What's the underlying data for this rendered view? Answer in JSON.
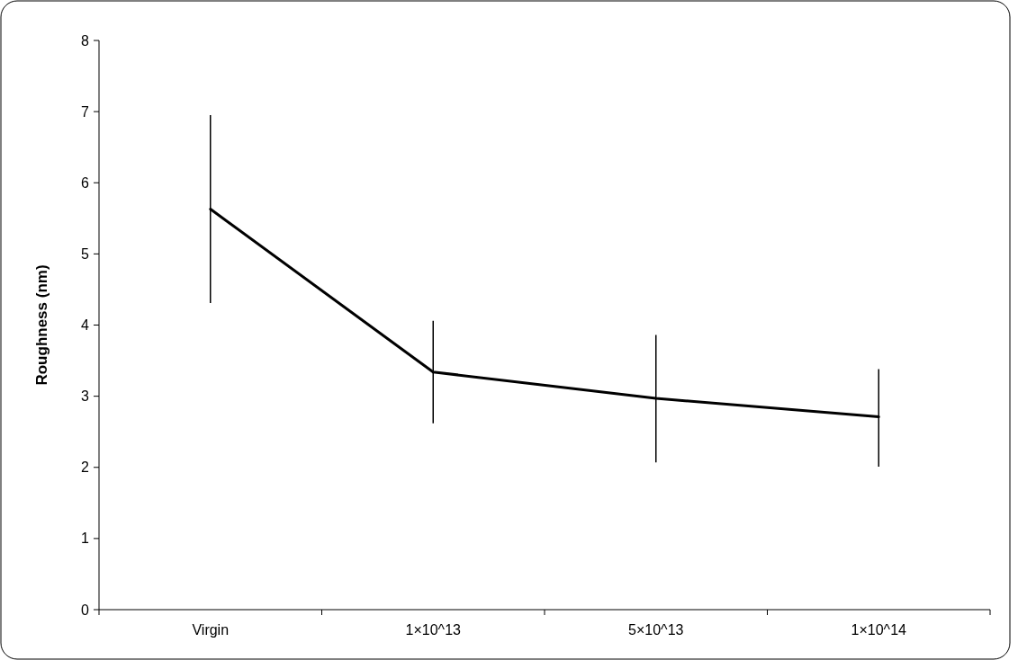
{
  "chart_data": {
    "type": "line",
    "ylabel": "Roughness (nm)",
    "categories": [
      "Virgin",
      "1×10^13",
      "5×10^13",
      "1×10^14"
    ],
    "series": [
      {
        "color": "#000000",
        "values": [
          5.63,
          3.34,
          2.97,
          2.71
        ],
        "errors": [
          [
            4.31,
            6.95
          ],
          [
            2.62,
            4.06
          ],
          [
            2.07,
            3.86
          ],
          [
            2.01,
            3.38
          ]
        ]
      }
    ],
    "ylim": [
      0,
      8
    ],
    "yticks": [
      0,
      1,
      2,
      3,
      4,
      5,
      6,
      7,
      8
    ],
    "line_style": "solid"
  }
}
